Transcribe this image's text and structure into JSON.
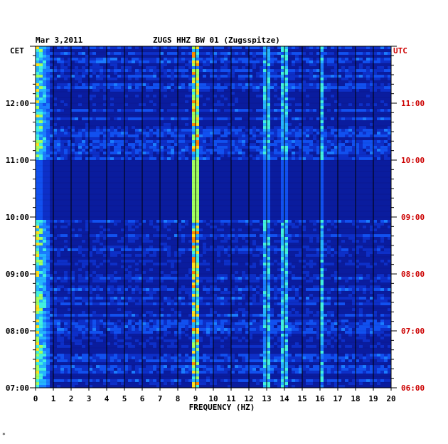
{
  "chart_data": {
    "type": "heatmap",
    "date": "Mar 3,2011",
    "title": "ZUGS HHZ BW 01 (Zugsspitze)",
    "left_label": "CET",
    "right_label": "UTC",
    "xlabel": "FREQUENCY (HZ)",
    "xlim": [
      0,
      20
    ],
    "x_ticks": [
      "0",
      "1",
      "2",
      "3",
      "4",
      "5",
      "6",
      "7",
      "8",
      "9",
      "10",
      "11",
      "12",
      "13",
      "14",
      "15",
      "16",
      "17",
      "18",
      "19",
      "20"
    ],
    "ylim_cet": [
      "07:00",
      "13:00"
    ],
    "y_ticks_left": [
      "07:00",
      "08:00",
      "09:00",
      "10:00",
      "11:00",
      "12:00"
    ],
    "y_ticks_right": [
      "06:00",
      "07:00",
      "08:00",
      "09:00",
      "10:00",
      "11:00"
    ],
    "grid": true,
    "footnote": "*",
    "colors": {
      "background_low": "#0a1c9e",
      "axis_text": "#000000",
      "utc_text": "#cc0000",
      "peak": "#ff3000"
    },
    "features": [
      {
        "name": "low-frequency band",
        "x_range_hz": [
          0.0,
          0.8
        ],
        "strength": "high"
      },
      {
        "name": "line 9 Hz",
        "x_hz": 9.0,
        "strength": "high"
      },
      {
        "name": "line 13 Hz",
        "x_hz": 13.0,
        "strength": "medium"
      },
      {
        "name": "line 14 Hz",
        "x_hz": 14.0,
        "strength": "medium"
      },
      {
        "name": "line 16 Hz",
        "x_hz": 16.1,
        "strength": "medium"
      },
      {
        "name": "quiet period",
        "time_cet": [
          "10:00",
          "11:00"
        ],
        "strength": "low"
      }
    ]
  }
}
